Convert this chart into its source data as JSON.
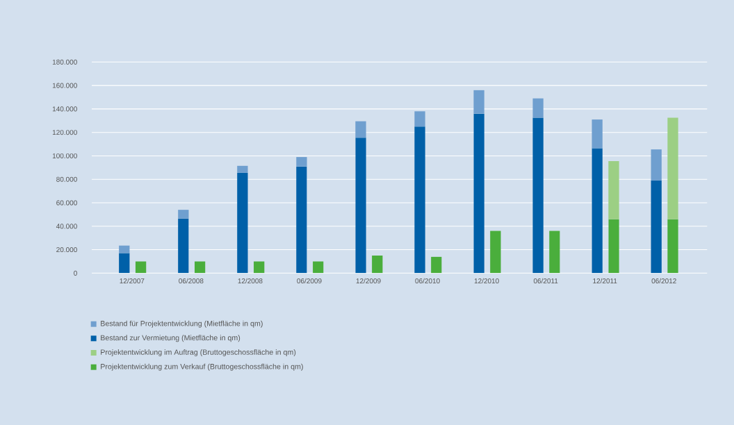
{
  "chart_data": [
    {
      "type": "bar",
      "stacked": true,
      "categories": [
        "12/2007",
        "06/2008",
        "12/2008",
        "06/2009",
        "12/2009",
        "06/2010",
        "12/2010",
        "06/2011",
        "12/2011",
        "06/2012"
      ],
      "series": [
        {
          "name": "Bestand zur Vermietung (Mietfläche in qm)",
          "color": "#0060a8",
          "values": [
            17000,
            46500,
            85500,
            91000,
            115500,
            125000,
            136000,
            132500,
            106500,
            79000
          ]
        },
        {
          "name": "Bestand für Projektentwicklung (Mietfläche in qm)",
          "color": "#6f9fcf",
          "values": [
            6500,
            7500,
            6000,
            8000,
            14000,
            13000,
            20000,
            16500,
            24500,
            26500
          ]
        }
      ],
      "ylim": [
        0,
        180000
      ],
      "yticks": [
        {
          "value": 0,
          "label": "0"
        },
        {
          "value": 20000,
          "label": "20.000"
        },
        {
          "value": 40000,
          "label": "40.000"
        },
        {
          "value": 60000,
          "label": "60.000"
        },
        {
          "value": 80000,
          "label": "80.000"
        },
        {
          "value": 100000,
          "label": "100.000"
        },
        {
          "value": 120000,
          "label": "120.000"
        },
        {
          "value": 140000,
          "label": "140.000"
        },
        {
          "value": 160000,
          "label": "160.000"
        },
        {
          "value": 180000,
          "label": "180.000"
        }
      ],
      "grid": "y",
      "legend": "bottom left"
    },
    {
      "type": "bar",
      "stacked": true,
      "categories": [
        null,
        null,
        null,
        null,
        null,
        null,
        null,
        null,
        null,
        null
      ],
      "series": [
        {
          "name": "Projektentwicklung zum Verkauf (Bruttogeschossfläche in qm)",
          "color": "#4aae3c",
          "values": [
            10000,
            10000,
            10000,
            10000,
            15000,
            14000,
            36000,
            36000,
            46000,
            46000
          ]
        },
        {
          "name": "Projektentwicklung im Auftrag (Bruttogeschossfläche in qm)",
          "color": "#9ccf84",
          "values": [
            null,
            null,
            null,
            null,
            null,
            null,
            null,
            null,
            49500,
            86500
          ]
        }
      ],
      "ylim": [
        0,
        180000
      ],
      "tick_labels": false,
      "legend": "bottom left"
    }
  ]
}
